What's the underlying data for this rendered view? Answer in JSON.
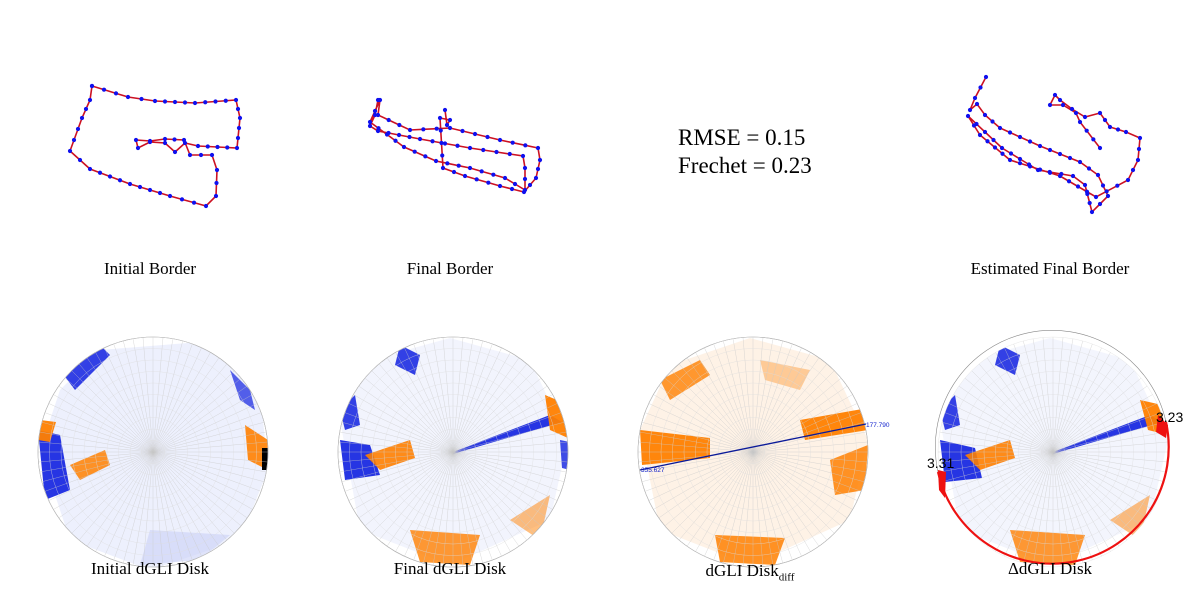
{
  "metrics": {
    "rmse": "RMSE = 0.15",
    "frechet": "Frechet = 0.23"
  },
  "captions": {
    "initial_border": "Initial Border",
    "final_border": "Final Border",
    "estimated_final_border": "Estimated Final Border",
    "initial_disk": "Initial dGLI Disk",
    "final_disk": "Final dGLI Disk",
    "diff_disk_main": "dGLI Disk",
    "diff_disk_sub": "diff",
    "delta_disk": "ΔdGLI Disk"
  },
  "annotations": {
    "diff_line_right": "177.790",
    "diff_line_left": "355.627",
    "delta_right_value": "3.23",
    "delta_left_value": "3.31"
  },
  "colors": {
    "point": "#1010ee",
    "edge": "#cc1122",
    "orange": "#ff8000",
    "blue": "#1020e0",
    "red": "#ee1111"
  }
}
